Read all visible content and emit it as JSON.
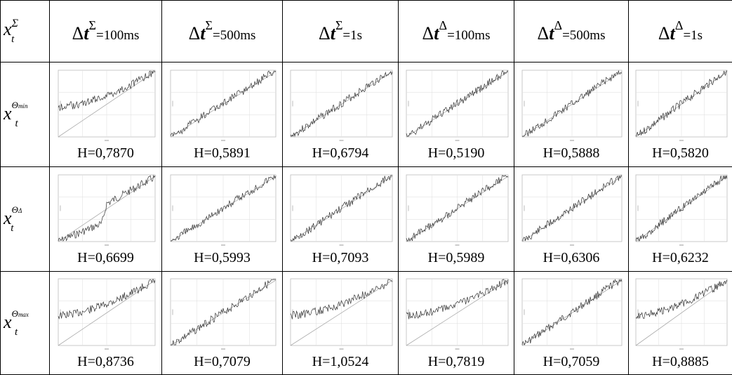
{
  "header": {
    "corner": {
      "base": "x",
      "sub": "t",
      "sup": "Σ"
    },
    "columns": [
      {
        "delta": "Δ",
        "t": "t",
        "sup": "Σ",
        "value": "=100ms"
      },
      {
        "delta": "Δ",
        "t": "t",
        "sup": "Σ",
        "value": "=500ms"
      },
      {
        "delta": "Δ",
        "t": "t",
        "sup": "Σ",
        "value": "=1s"
      },
      {
        "delta": "Δ",
        "t": "t",
        "sup": "Δ",
        "value": "=100ms"
      },
      {
        "delta": "Δ",
        "t": "t",
        "sup": "Δ",
        "value": "=500ms"
      },
      {
        "delta": "Δ",
        "t": "t",
        "sup": "Δ",
        "value": "=1s"
      }
    ]
  },
  "rows": [
    {
      "label": {
        "base": "x",
        "sub": "t",
        "sup_main": "Θ",
        "sup_small": "min"
      },
      "cells": [
        {
          "h": "H=0,7870"
        },
        {
          "h": "H=0,5891"
        },
        {
          "h": "H=0,6794"
        },
        {
          "h": "H=0,5190"
        },
        {
          "h": "H=0,5888"
        },
        {
          "h": "H=0,5820"
        }
      ]
    },
    {
      "label": {
        "base": "x",
        "sub": "t",
        "sup_main": "Θ",
        "sup_small": "Δ"
      },
      "cells": [
        {
          "h": "H=0,6699"
        },
        {
          "h": "H=0,5993"
        },
        {
          "h": "H=0,7093"
        },
        {
          "h": "H=0,5989"
        },
        {
          "h": "H=0,6306"
        },
        {
          "h": "H=0,6232"
        }
      ]
    },
    {
      "label": {
        "base": "x",
        "sub": "t",
        "sup_main": "Θ",
        "sup_small": "max"
      },
      "cells": [
        {
          "h": "H=0,8736"
        },
        {
          "h": "H=0,7079"
        },
        {
          "h": "H=1,0524"
        },
        {
          "h": "H=0,7819"
        },
        {
          "h": "H=0,7059"
        },
        {
          "h": "H=0,8885"
        }
      ]
    }
  ]
}
